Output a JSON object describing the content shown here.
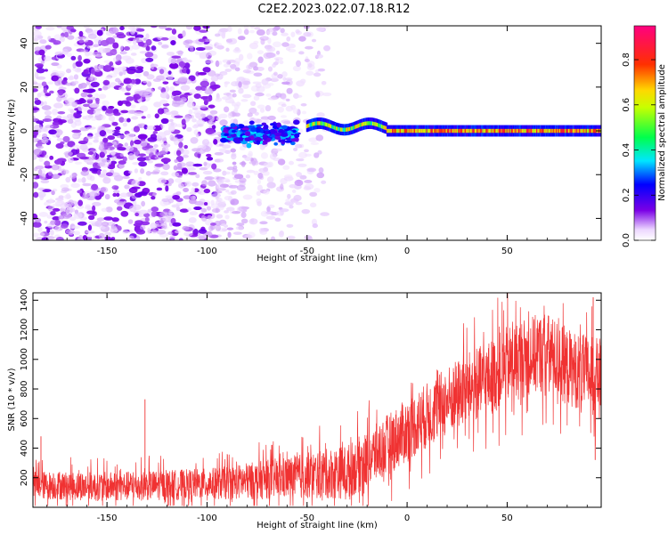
{
  "title": "C2E2.2023.022.07.18.R12",
  "colors": {
    "scatter_purple": "#7a00e6",
    "scatter_light": "#c9a6f5",
    "snr_line": "#f03232",
    "axis": "#000000"
  },
  "chart_data": [
    {
      "type": "heatmap",
      "name": "spectrogram",
      "xlabel": "Height of straight line (km)",
      "ylabel": "Frequency (Hz)",
      "xlim": [
        -187,
        97
      ],
      "ylim": [
        -50,
        48
      ],
      "xticks": [
        -150,
        -100,
        -50,
        0,
        50
      ],
      "yticks": [
        -40,
        -20,
        0,
        20,
        40
      ],
      "colorbar": {
        "label": "Normalized spectral amplitude",
        "range": [
          0.0,
          0.95
        ],
        "ticks": [
          0.0,
          0.2,
          0.4,
          0.6,
          0.8
        ],
        "colormap": "rainbow"
      },
      "features": {
        "noise_region_x": [
          -187,
          -40
        ],
        "dense_noise_until_x": -95,
        "signal_cluster_x": [
          -92,
          -55
        ],
        "signal_band_freq": 0,
        "continuous_band_x": [
          -50,
          97
        ],
        "band_peak_amplitude": 0.9
      }
    },
    {
      "type": "line",
      "name": "snr",
      "xlabel": "Height of straight line (km)",
      "ylabel": "SNR (10 * v/v)",
      "xlim": [
        -187,
        97
      ],
      "ylim": [
        0,
        1450
      ],
      "xticks": [
        -150,
        -100,
        -50,
        0,
        50
      ],
      "yticks": [
        200,
        400,
        600,
        800,
        1000,
        1200,
        1400
      ],
      "trend": {
        "x": [
          -187,
          -150,
          -120,
          -90,
          -60,
          -30,
          -20,
          -10,
          0,
          10,
          20,
          30,
          40,
          50,
          60,
          70,
          80,
          90,
          97
        ],
        "y": [
          150,
          140,
          150,
          165,
          200,
          240,
          320,
          420,
          520,
          620,
          720,
          800,
          860,
          960,
          1020,
          1050,
          950,
          900,
          890
        ]
      },
      "spread": {
        "x": [
          -187,
          -100,
          -60,
          -30,
          -10,
          10,
          40,
          60,
          97
        ],
        "y": [
          120,
          130,
          180,
          230,
          260,
          280,
          320,
          340,
          320
        ]
      },
      "spikes": [
        {
          "x": -131,
          "y": 730
        },
        {
          "x": -183,
          "y": 480
        },
        {
          "x": 93,
          "y": 1420
        },
        {
          "x": 94,
          "y": 320
        }
      ]
    }
  ]
}
